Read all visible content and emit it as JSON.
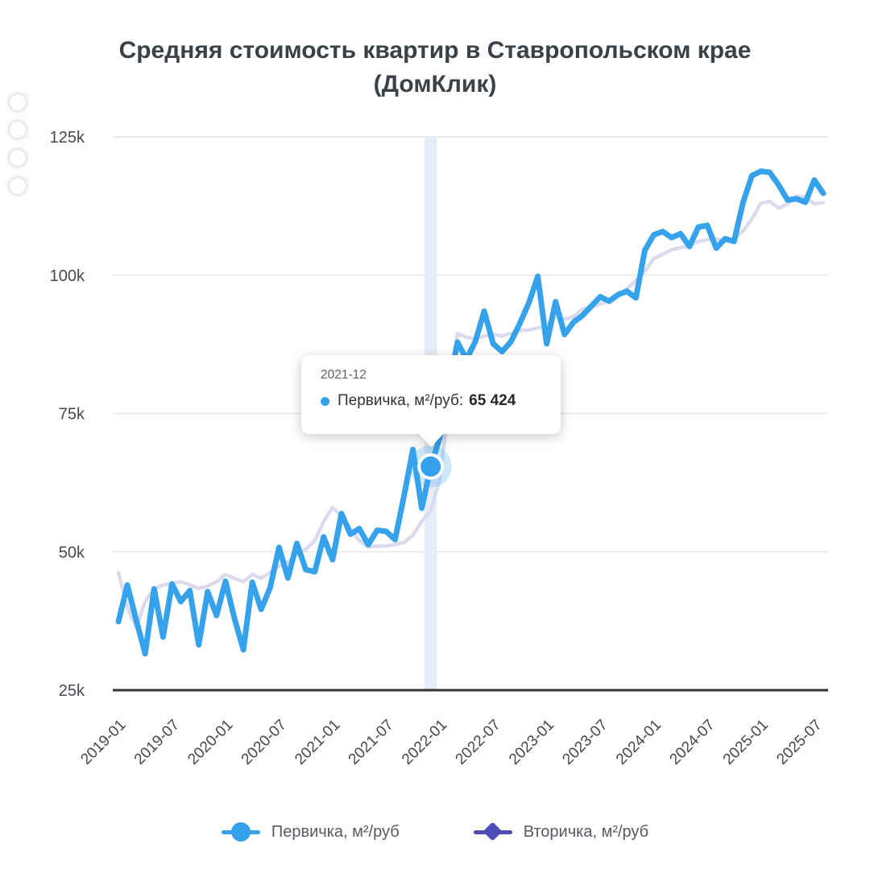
{
  "title": {
    "line1": "Средняя стоимость квартир в Ставропольском крае",
    "line2": "(ДомКлик)"
  },
  "side_toolbar": {
    "dot_count": 4,
    "dots": [
      "floating-dot-1",
      "floating-dot-2",
      "floating-dot-3",
      "floating-dot-4"
    ]
  },
  "tooltip": {
    "date": "2021-12",
    "series_label": "Первичка, м²/руб:",
    "value": "65 424",
    "dot_color": "#36A2EB"
  },
  "legend": {
    "items": [
      {
        "label": "Первичка, м²/руб",
        "color": "#36A2EB",
        "marker": "circle"
      },
      {
        "label": "Вторичка, м²/руб",
        "color": "#4C4DB5",
        "marker": "diamond"
      }
    ]
  },
  "chart_data": {
    "type": "line",
    "title": "Средняя стоимость квартир в Ставропольском крае (ДомКлик)",
    "ylabel": "",
    "xlabel": "",
    "grid": "horizontal",
    "ylim": [
      25000,
      125000
    ],
    "yticks": [
      25000,
      50000,
      75000,
      100000,
      125000
    ],
    "ytick_labels": [
      "25k",
      "50k",
      "75k",
      "100k",
      "125k"
    ],
    "xtick_labels": [
      "2019-01",
      "2019-07",
      "2020-01",
      "2020-07",
      "2021-01",
      "2021-07",
      "2022-01",
      "2022-07",
      "2023-01",
      "2023-07",
      "2024-01",
      "2024-07",
      "2025-01",
      "2025-07"
    ],
    "xtick_every": 6,
    "highlight": {
      "x": "2021-12",
      "series": "Первичка, м²/руб",
      "value": 65424
    },
    "colors": {
      "primary_line": "#36A2EB",
      "secondary_line": "#DBDBEF",
      "secondary_legend": "#4C4DB5",
      "band": "#E8ECFA",
      "grid": "#EBEBEB",
      "axis": "#333333"
    },
    "x": [
      "2019-01",
      "2019-02",
      "2019-03",
      "2019-04",
      "2019-05",
      "2019-06",
      "2019-07",
      "2019-08",
      "2019-09",
      "2019-10",
      "2019-11",
      "2019-12",
      "2020-01",
      "2020-02",
      "2020-03",
      "2020-04",
      "2020-05",
      "2020-06",
      "2020-07",
      "2020-08",
      "2020-09",
      "2020-10",
      "2020-11",
      "2020-12",
      "2021-01",
      "2021-02",
      "2021-03",
      "2021-04",
      "2021-05",
      "2021-06",
      "2021-07",
      "2021-08",
      "2021-09",
      "2021-10",
      "2021-11",
      "2021-12",
      "2022-01",
      "2022-02",
      "2022-03",
      "2022-04",
      "2022-05",
      "2022-06",
      "2022-07",
      "2022-08",
      "2022-09",
      "2022-10",
      "2022-11",
      "2022-12",
      "2023-01",
      "2023-02",
      "2023-03",
      "2023-04",
      "2023-05",
      "2023-06",
      "2023-07",
      "2023-08",
      "2023-09",
      "2023-10",
      "2023-11",
      "2023-12",
      "2024-01",
      "2024-02",
      "2024-03",
      "2024-04",
      "2024-05",
      "2024-06",
      "2024-07",
      "2024-08",
      "2024-09",
      "2024-10",
      "2024-11",
      "2024-12",
      "2025-01",
      "2025-02",
      "2025-03",
      "2025-04",
      "2025-05",
      "2025-06",
      "2025-07",
      "2025-08"
    ],
    "series": [
      {
        "name": "Первичка, м²/руб",
        "color": "#36A2EB",
        "values": [
          37400,
          44000,
          37600,
          31600,
          43300,
          34600,
          44200,
          41000,
          43000,
          33200,
          42800,
          38500,
          44700,
          38000,
          32300,
          44500,
          39600,
          43500,
          50800,
          45300,
          51500,
          46800,
          46400,
          52700,
          48600,
          56900,
          53200,
          54200,
          51300,
          53900,
          53700,
          52200,
          60000,
          68500,
          57900,
          65424,
          70500,
          79500,
          87900,
          84800,
          88000,
          93500,
          87600,
          86200,
          88000,
          91300,
          95000,
          99800,
          87600,
          95200,
          89300,
          91500,
          92700,
          94400,
          96100,
          95300,
          96500,
          97100,
          95900,
          104500,
          107300,
          107900,
          106800,
          107500,
          105200,
          108700,
          109000,
          104900,
          106600,
          106100,
          113100,
          118000,
          118800,
          118600,
          116300,
          113600,
          113800,
          113200,
          117200,
          114800
        ]
      },
      {
        "name": "Вторичка, м²/руб",
        "color": "#DBDBEF",
        "values": [
          46300,
          40000,
          36300,
          41000,
          43400,
          44000,
          44300,
          44600,
          44000,
          43400,
          43800,
          44600,
          45900,
          45200,
          44600,
          45900,
          45200,
          46300,
          47400,
          48100,
          49500,
          50500,
          52000,
          55500,
          58000,
          56500,
          54200,
          52000,
          50900,
          51000,
          51100,
          51300,
          51700,
          53000,
          55500,
          57500,
          63000,
          76000,
          89500,
          88800,
          88500,
          89000,
          89300,
          89000,
          89500,
          90000,
          90100,
          90500,
          90800,
          92700,
          92000,
          92500,
          93900,
          94300,
          94800,
          95300,
          96200,
          97600,
          99000,
          100700,
          103000,
          103800,
          104600,
          105000,
          105300,
          106100,
          106400,
          106600,
          106100,
          106600,
          108000,
          110200,
          113000,
          113400,
          112100,
          112900,
          114300,
          114100,
          112900,
          113100
        ]
      }
    ]
  }
}
